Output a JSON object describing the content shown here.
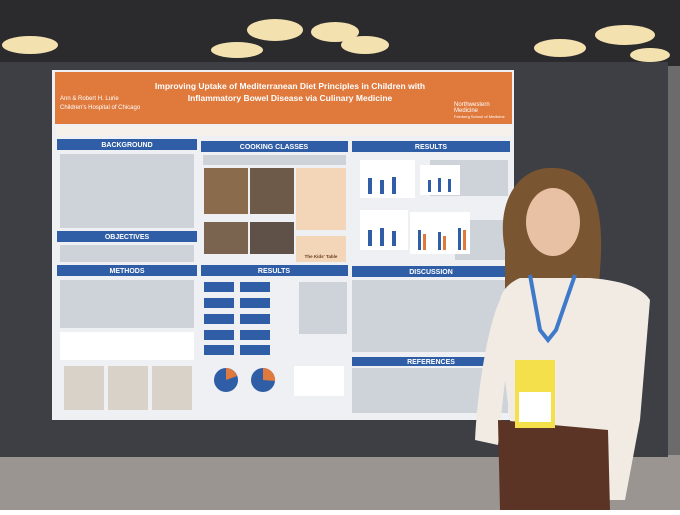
{
  "poster": {
    "title_line1": "Improving Uptake of Mediterranean Diet Principles in Children with",
    "title_line2": "Inflammatory Bowel Disease via Culinary Medicine",
    "left_logo_line1": "Ann & Robert H. Lurie",
    "left_logo_line2": "Children's Hospital of Chicago",
    "right_logo_line1": "Northwestern",
    "right_logo_line2": "Medicine",
    "right_logo_line3": "Feinberg School of Medicine",
    "sections": [
      "BACKGROUND",
      "COOKING CLASSES",
      "RESULTS",
      "OBJECTIVES",
      "METHODS",
      "RESULTS",
      "DISCUSSION",
      "REFERENCES"
    ],
    "kids_table": "The Kids' Table"
  }
}
